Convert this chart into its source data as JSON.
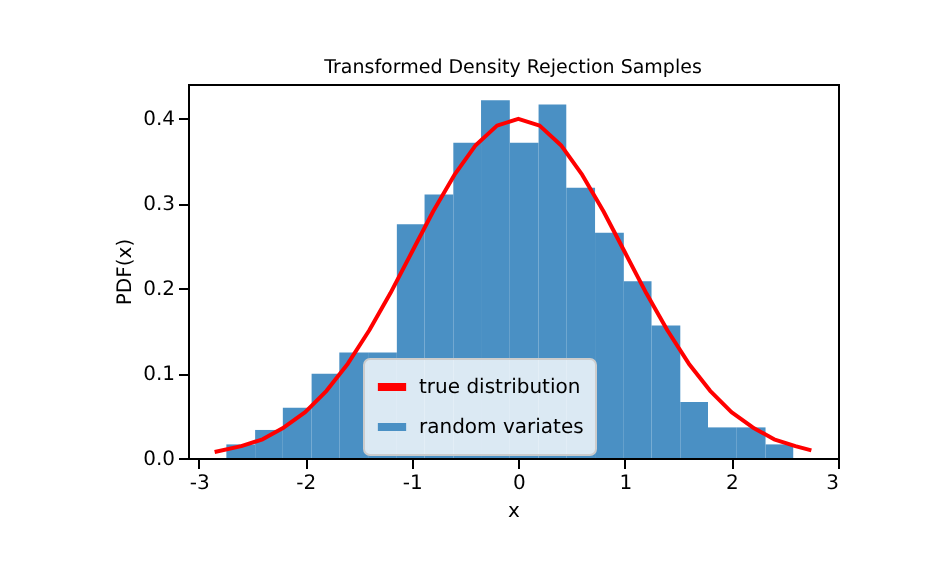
{
  "chart_data": {
    "type": "histogram",
    "title": "Transformed Density Rejection Samples",
    "xlabel": "x",
    "ylabel": "PDF(x)",
    "bins": [
      -2.74,
      -2.47,
      -2.21,
      -1.94,
      -1.68,
      -1.41,
      -1.14,
      -0.88,
      -0.61,
      -0.35,
      -0.08,
      0.19,
      0.45,
      0.72,
      0.99,
      1.25,
      1.52,
      1.78,
      2.05,
      2.32,
      2.58
    ],
    "series": [
      {
        "name": "true distribution",
        "type": "line",
        "color": "#ff0000",
        "line_style": "solid",
        "marker": "none",
        "x": [
          -2.85,
          -2.6,
          -2.4,
          -2.2,
          -2.0,
          -1.8,
          -1.6,
          -1.4,
          -1.2,
          -1.0,
          -0.8,
          -0.6,
          -0.4,
          -0.2,
          0.0,
          0.2,
          0.4,
          0.6,
          0.8,
          1.0,
          1.2,
          1.4,
          1.6,
          1.8,
          2.0,
          2.2,
          2.4,
          2.6,
          2.75
        ],
        "values": [
          0.007,
          0.014,
          0.022,
          0.036,
          0.054,
          0.079,
          0.111,
          0.15,
          0.194,
          0.242,
          0.29,
          0.333,
          0.368,
          0.391,
          0.399,
          0.391,
          0.368,
          0.333,
          0.29,
          0.242,
          0.194,
          0.15,
          0.111,
          0.079,
          0.054,
          0.036,
          0.022,
          0.014,
          0.009
        ]
      },
      {
        "name": "random variates",
        "color": "#4a90c4",
        "values": [
          0.016,
          0.033,
          0.059,
          0.099,
          0.124,
          0.124,
          0.275,
          0.31,
          0.371,
          0.421,
          0.371,
          0.416,
          0.318,
          0.265,
          0.208,
          0.156,
          0.066,
          0.036,
          0.036,
          0.016
        ]
      }
    ],
    "xlim": [
      -3.1,
      3.0
    ],
    "xticks": [
      -3,
      -2,
      -1,
      0,
      1,
      2,
      3
    ],
    "ylim": [
      0,
      0.44
    ],
    "yticks": [
      {
        "value": 0,
        "label": "0.0"
      },
      {
        "value": 0.1,
        "label": "0.1"
      },
      {
        "value": 0.2,
        "label": "0.2"
      },
      {
        "value": 0.3,
        "label": "0.3"
      },
      {
        "value": 0.4,
        "label": "0.4"
      }
    ],
    "grid": false,
    "legend": "bottom"
  }
}
